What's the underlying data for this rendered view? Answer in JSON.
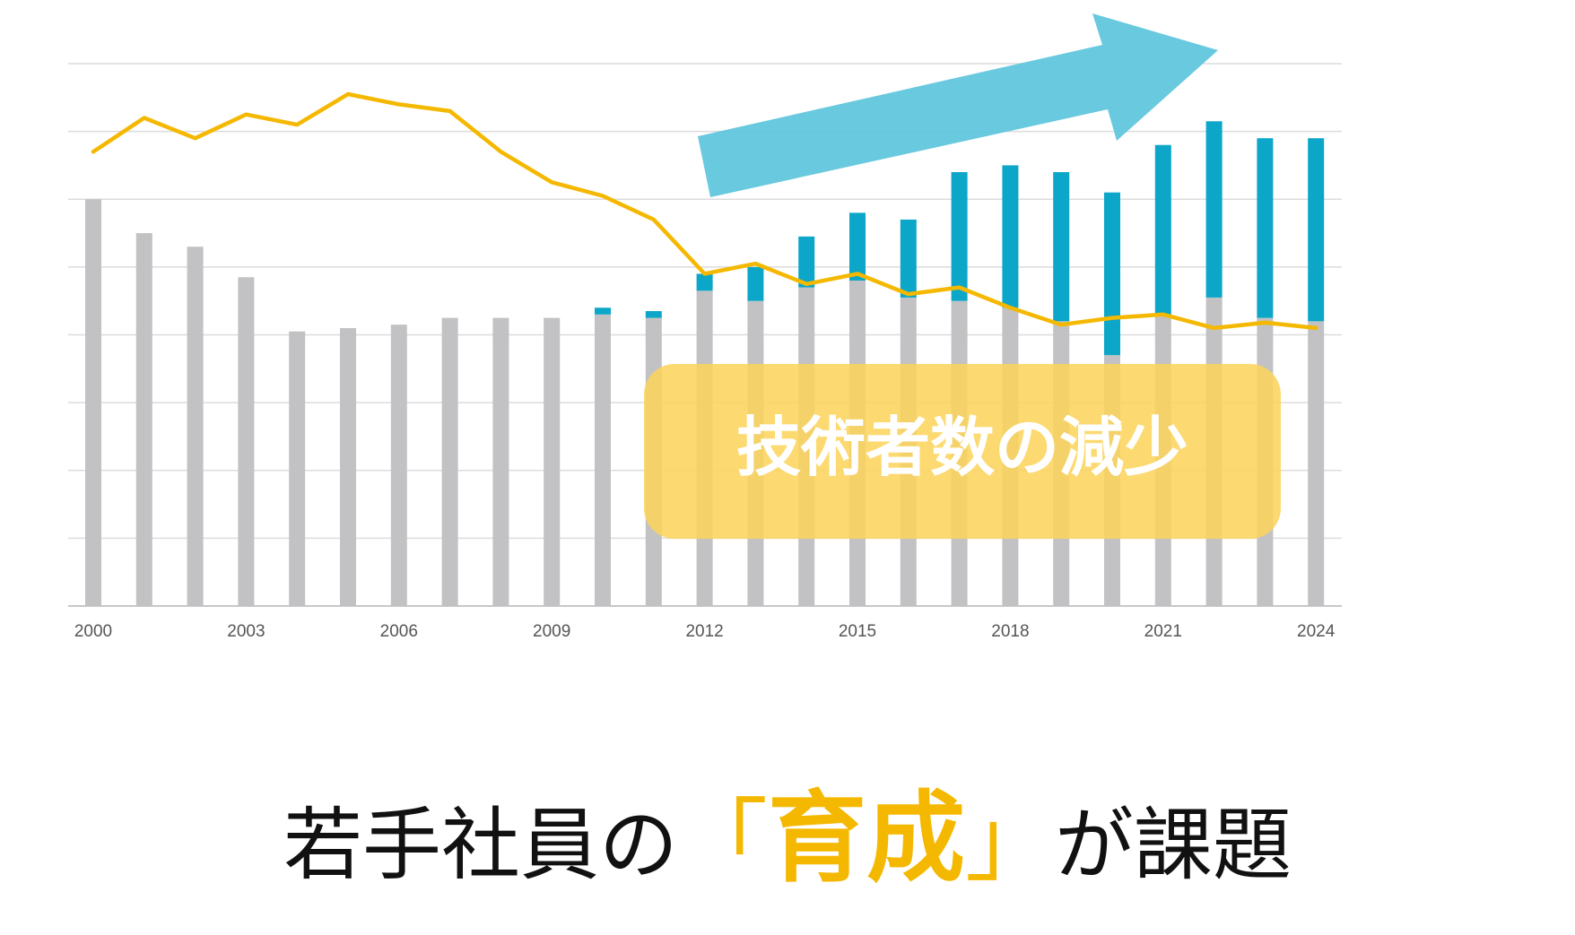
{
  "colors": {
    "gray_bar": "#c2c2c4",
    "blue_bar": "#0ba6c8",
    "line": "#f5b800",
    "arrow": "#5cc4dc",
    "badge": "#fcd45a",
    "grid": "#dcdcdc",
    "accent_text": "#f5b800"
  },
  "chart_data": {
    "type": "bar",
    "xlabel": "",
    "ylabel": "",
    "x": [
      2000,
      2001,
      2002,
      2003,
      2004,
      2005,
      2006,
      2007,
      2008,
      2009,
      2010,
      2011,
      2012,
      2013,
      2014,
      2015,
      2016,
      2017,
      2018,
      2019,
      2020,
      2021,
      2022,
      2023,
      2024
    ],
    "tick_labels": [
      "2000",
      "2003",
      "2006",
      "2009",
      "2012",
      "2015",
      "2018",
      "2021",
      "2024"
    ],
    "ylim": [
      0,
      8
    ],
    "grid": true,
    "series": [
      {
        "kind": "bar",
        "values": [
          6.0,
          5.5,
          5.3,
          4.85,
          4.05,
          4.1,
          4.15,
          4.25,
          4.25,
          4.25,
          4.3,
          4.25,
          4.65,
          4.5,
          4.7,
          4.8,
          4.55,
          4.5,
          4.4,
          4.2,
          3.7,
          4.3,
          4.55,
          4.25,
          4.2
        ]
      },
      {
        "kind": "bar-stacked",
        "values": [
          0,
          0,
          0,
          0,
          0,
          0,
          0,
          0,
          0,
          0,
          0.1,
          0.1,
          0.25,
          0.5,
          0.75,
          1.0,
          1.15,
          1.9,
          2.1,
          2.2,
          2.4,
          2.5,
          2.6,
          2.65,
          2.7
        ]
      },
      {
        "kind": "line",
        "values": [
          6.7,
          7.2,
          6.9,
          7.25,
          7.1,
          7.55,
          7.4,
          7.3,
          6.7,
          6.25,
          6.05,
          5.7,
          4.9,
          5.05,
          4.75,
          4.9,
          4.6,
          4.7,
          4.4,
          4.15,
          4.25,
          4.3,
          4.1,
          4.18,
          4.1
        ]
      }
    ]
  },
  "badge": {
    "text": "技術者数の減少"
  },
  "caption": {
    "lead": "若手社員の",
    "open_bracket": "「",
    "highlight": "育成",
    "close_bracket": "」",
    "tail": "が課題"
  }
}
